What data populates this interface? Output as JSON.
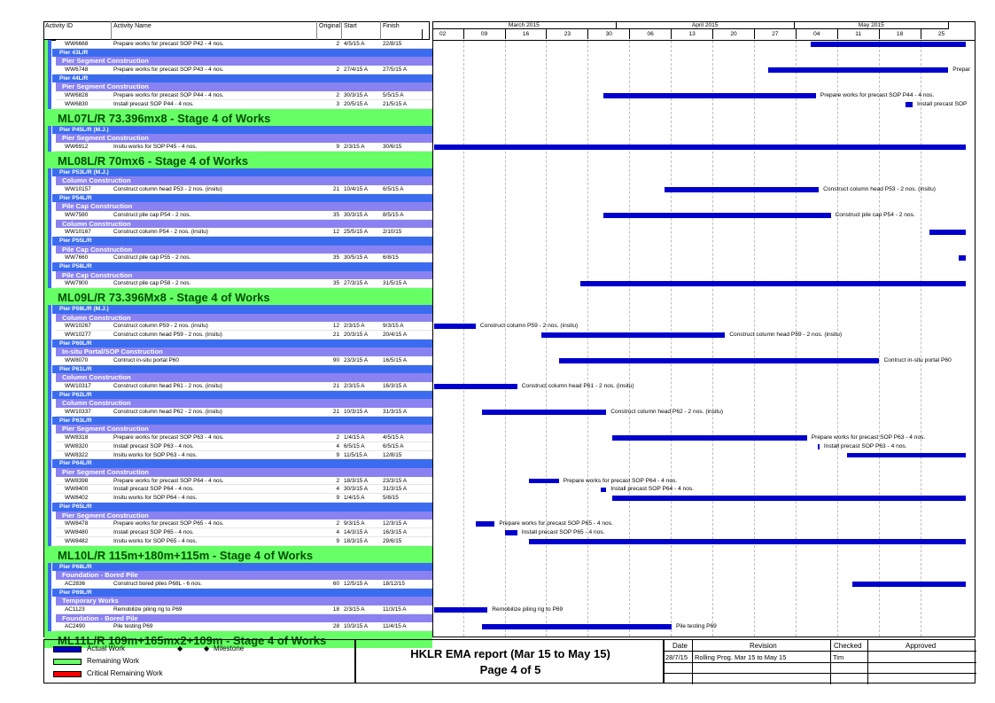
{
  "header": {
    "columns": {
      "activity_id": "Activity ID",
      "activity_name": "Activity Name",
      "original": "Original",
      "start": "Start",
      "finish": "Finish"
    },
    "months": [
      {
        "label": "March 2015",
        "start_day": 0,
        "end_day": 31
      },
      {
        "label": "April 2015",
        "start_day": 31,
        "end_day": 61
      },
      {
        "label": "May 2015",
        "start_day": 61,
        "end_day": 87
      }
    ],
    "weeks": [
      {
        "label": "02",
        "day": 1
      },
      {
        "label": "09",
        "day": 8
      },
      {
        "label": "16",
        "day": 15
      },
      {
        "label": "23",
        "day": 22
      },
      {
        "label": "30",
        "day": 29
      },
      {
        "label": "06",
        "day": 36
      },
      {
        "label": "13",
        "day": 43
      },
      {
        "label": "20",
        "day": 50
      },
      {
        "label": "27",
        "day": 57
      },
      {
        "label": "04",
        "day": 64
      },
      {
        "label": "11",
        "day": 71
      },
      {
        "label": "18",
        "day": 78
      },
      {
        "label": "25",
        "day": 85
      }
    ]
  },
  "rows": [
    {
      "type": "activity",
      "id": "WW6668",
      "name": "Prepare works for precast SOP P42 - 4 nos.",
      "dur": "2",
      "start": "4/5/15 A",
      "finish": "22/8/15",
      "bar": [
        63.4,
        89.5
      ],
      "label": ""
    },
    {
      "type": "l1",
      "text": "Pier 43L/R"
    },
    {
      "type": "l2",
      "text": "Pier Segment Construction"
    },
    {
      "type": "activity",
      "id": "WW6748",
      "name": "Prepare works for precast SOP P43 - 4 nos.",
      "dur": "2",
      "start": "27/4/15 A",
      "finish": "27/5/15 A",
      "bar": [
        56.3,
        86.6
      ],
      "label": "Prepar"
    },
    {
      "type": "l1",
      "text": "Pier 44L/R"
    },
    {
      "type": "l2",
      "text": "Pier Segment Construction"
    },
    {
      "type": "activity",
      "id": "WW6828",
      "name": "Prepare works for precast SOP P44 - 4 nos.",
      "dur": "2",
      "start": "30/3/15 A",
      "finish": "5/5/15 A",
      "bar": [
        28.5,
        64.3
      ],
      "label": "Prepare works for precast SOP P44 - 4 nos."
    },
    {
      "type": "activity",
      "id": "WW6830",
      "name": "Install precast SOP P44 - 4 nos.",
      "dur": "3",
      "start": "20/5/15 A",
      "finish": "21/5/15 A",
      "bar": [
        79.4,
        80.6
      ],
      "label": "Install precast SOP"
    },
    {
      "type": "wbs",
      "text": "ML07L/R 73.396mx8 - Stage 4 of Works"
    },
    {
      "type": "l1",
      "text": "Pier P45L/R (M.J.)"
    },
    {
      "type": "l2",
      "text": "Pier Segment Construction"
    },
    {
      "type": "activity",
      "id": "WW6912",
      "name": "Insitu works for SOP P45 - 4 nos.",
      "dur": "9",
      "start": "2/3/15 A",
      "finish": "30/6/15",
      "bar": [
        0,
        89.5
      ],
      "label": ""
    },
    {
      "type": "wbs",
      "text": "ML08L/R 70mx6 - Stage 4 of Works"
    },
    {
      "type": "l1",
      "text": "Pier P53L/R (M.J.)"
    },
    {
      "type": "l2",
      "text": "Column Construction"
    },
    {
      "type": "activity",
      "id": "WW10157",
      "name": "Construct column head P53 - 2 nos. (insitu)",
      "dur": "21",
      "start": "10/4/15 A",
      "finish": "6/5/15 A",
      "bar": [
        38.8,
        64.8
      ],
      "label": "Construct column head P53 - 2 nos. (insitu)"
    },
    {
      "type": "l1",
      "text": "Pier P54L/R"
    },
    {
      "type": "l2",
      "text": "Pile Cap Construction"
    },
    {
      "type": "activity",
      "id": "WW7580",
      "name": "Construct pile cap P54 - 2 nos.",
      "dur": "35",
      "start": "30/3/15 A",
      "finish": "8/5/15 A",
      "bar": [
        28.5,
        66.8
      ],
      "label": "Construct pile cap P54 - 2 nos."
    },
    {
      "type": "l2",
      "text": "Column Construction"
    },
    {
      "type": "activity",
      "id": "WW10167",
      "name": "Construct column P54 - 2 nos. (insitu)",
      "dur": "12",
      "start": "25/5/15 A",
      "finish": "2/10/15",
      "bar": [
        83.5,
        89.5
      ],
      "label": ""
    },
    {
      "type": "l1",
      "text": "Pier P55L/R"
    },
    {
      "type": "l2",
      "text": "Pile Cap Construction"
    },
    {
      "type": "activity",
      "id": "WW7660",
      "name": "Construct pile cap P55 - 2 nos.",
      "dur": "35",
      "start": "30/5/15 A",
      "finish": "6/8/15",
      "bar": [
        88.4,
        89.5
      ],
      "label": ""
    },
    {
      "type": "l1",
      "text": "Pier P58L/R"
    },
    {
      "type": "l2",
      "text": "Pile Cap Construction"
    },
    {
      "type": "activity",
      "id": "WW7900",
      "name": "Construct pile cap P58 - 2 nos.",
      "dur": "35",
      "start": "27/3/15 A",
      "finish": "31/5/15 A",
      "bar": [
        24.7,
        89.5
      ],
      "label": ""
    },
    {
      "type": "wbs",
      "text": "ML09L/R 73.396Mx8 - Stage 4 of Works"
    },
    {
      "type": "l1",
      "text": "Pier P59L/R (M.J.)"
    },
    {
      "type": "l2",
      "text": "Column Construction"
    },
    {
      "type": "activity",
      "id": "WW10267",
      "name": "Construct column P59 - 2 nos. (insitu)",
      "dur": "12",
      "start": "2/3/15 A",
      "finish": "9/3/15 A",
      "bar": [
        0,
        7
      ],
      "label": "Construct column P59 - 2 nos. (insitu)"
    },
    {
      "type": "activity",
      "id": "WW10277",
      "name": "Construct column head P59 - 2 nos. (insitu)",
      "dur": "21",
      "start": "20/3/15 A",
      "finish": "20/4/15 A",
      "bar": [
        18,
        49
      ],
      "label": "Construct column head P59 - 2 nos. (insitu)"
    },
    {
      "type": "l1",
      "text": "Pier P60L/R"
    },
    {
      "type": "l2",
      "text": "In-situ Portal/SOP Construction"
    },
    {
      "type": "activity",
      "id": "WW8070",
      "name": "Contruct in-situ portal P60",
      "dur": "90",
      "start": "23/3/15 A",
      "finish": "16/5/15 A",
      "bar": [
        21,
        75
      ],
      "label": "Contruct in-situ portal P60"
    },
    {
      "type": "l1",
      "text": "Pier P61L/R"
    },
    {
      "type": "l2",
      "text": "Column Construction"
    },
    {
      "type": "activity",
      "id": "WW10317",
      "name": "Construct column head P61 - 2 nos. (insitu)",
      "dur": "21",
      "start": "2/3/15 A",
      "finish": "16/3/15 A",
      "bar": [
        0,
        14
      ],
      "label": "Construct column head P61 - 2 nos. (insitu)"
    },
    {
      "type": "l1",
      "text": "Pier P62L/R"
    },
    {
      "type": "l2",
      "text": "Column Construction"
    },
    {
      "type": "activity",
      "id": "WW10337",
      "name": "Construct column head P62 - 2 nos. (insitu)",
      "dur": "21",
      "start": "10/3/15 A",
      "finish": "31/3/15 A",
      "bar": [
        8,
        29
      ],
      "label": "Construct column head P62 - 2 nos. (insitu)"
    },
    {
      "type": "l1",
      "text": "Pier P63L/R"
    },
    {
      "type": "l2",
      "text": "Pier Segment Construction"
    },
    {
      "type": "activity",
      "id": "WW8318",
      "name": "Prepare works for precast SOP P63 - 4 nos.",
      "dur": "2",
      "start": "1/4/15 A",
      "finish": "4/5/15 A",
      "bar": [
        30,
        62.8
      ],
      "label": "Prepare works for precast SOP P63 - 4 nos."
    },
    {
      "type": "activity",
      "id": "WW8320",
      "name": "Install precast SOP P63 - 4 nos.",
      "dur": "4",
      "start": "6/5/15 A",
      "finish": "6/5/15 A",
      "bar": [
        64.6,
        64.9
      ],
      "label": "Install precast SOP P63 - 4 nos."
    },
    {
      "type": "activity",
      "id": "WW8322",
      "name": "Insitu works for SOP P63 - 4 nos.",
      "dur": "9",
      "start": "11/5/15 A",
      "finish": "12/8/15",
      "bar": [
        69.6,
        89.5
      ],
      "label": ""
    },
    {
      "type": "l1",
      "text": "Pier P64L/R"
    },
    {
      "type": "l2",
      "text": "Pier Segment Construction"
    },
    {
      "type": "activity",
      "id": "WW8398",
      "name": "Prepare works for precast SOP P64 - 4 nos.",
      "dur": "2",
      "start": "18/3/15 A",
      "finish": "23/3/15 A",
      "bar": [
        16,
        21
      ],
      "label": "Prepare works for precast SOP P64 - 4 nos."
    },
    {
      "type": "activity",
      "id": "WW8400",
      "name": "Install precast SOP P64 - 4 nos.",
      "dur": "4",
      "start": "30/3/15 A",
      "finish": "31/3/15 A",
      "bar": [
        28,
        29
      ],
      "label": "Install precast SOP P64 - 4 nos."
    },
    {
      "type": "activity",
      "id": "WW8402",
      "name": "Insitu works for SOP P64 - 4 nos.",
      "dur": "9",
      "start": "1/4/15 A",
      "finish": "5/8/15",
      "bar": [
        30,
        89.5
      ],
      "label": ""
    },
    {
      "type": "l1",
      "text": "Pier P65L/R"
    },
    {
      "type": "l2",
      "text": "Pier Segment Construction"
    },
    {
      "type": "activity",
      "id": "WW8478",
      "name": "Prepare works for precast SOP P65 - 4 nos.",
      "dur": "2",
      "start": "9/3/15 A",
      "finish": "12/3/15 A",
      "bar": [
        7,
        10.2
      ],
      "label": "Prepare works for precast SOP P65 - 4 nos."
    },
    {
      "type": "activity",
      "id": "WW8480",
      "name": "Install precast SOP P65 - 4 nos.",
      "dur": "4",
      "start": "14/3/15 A",
      "finish": "16/3/15 A",
      "bar": [
        12,
        14
      ],
      "label": "Install precast SOP P65 - 4 nos."
    },
    {
      "type": "activity",
      "id": "WW8482",
      "name": "Insitu works for SOP P65 - 4 nos.",
      "dur": "9",
      "start": "18/3/15 A",
      "finish": "29/6/15",
      "bar": [
        16,
        89.5
      ],
      "label": ""
    },
    {
      "type": "wbs",
      "text": "ML10L/R 115m+180m+115m - Stage 4 of Works"
    },
    {
      "type": "l1",
      "text": "Pier P68L/R"
    },
    {
      "type": "l2",
      "text": "Foundation - Bored Pile"
    },
    {
      "type": "activity",
      "id": "AC2836",
      "name": "Construct bored piles P68L - 6 nos.",
      "dur": "60",
      "start": "12/5/15 A",
      "finish": "18/12/15",
      "bar": [
        70.4,
        89.5
      ],
      "label": ""
    },
    {
      "type": "l1",
      "text": "Pier P69L/R"
    },
    {
      "type": "l2",
      "text": "Temporary Works"
    },
    {
      "type": "activity",
      "id": "AC1123",
      "name": "Remobilize piling rig to P69",
      "dur": "18",
      "start": "2/3/15 A",
      "finish": "11/3/15 A",
      "bar": [
        0,
        9
      ],
      "label": "Remobilize piling rig to P69"
    },
    {
      "type": "l2",
      "text": "Foundation - Bored Pile"
    },
    {
      "type": "activity",
      "id": "AC2490",
      "name": "Pile testing P69",
      "dur": "28",
      "start": "10/3/15 A",
      "finish": "11/4/15 A",
      "bar": [
        8,
        40
      ],
      "label": "Pile testing P69"
    },
    {
      "type": "wbs",
      "text": "ML11L/R 109m+165mx2+109m - Stage 4 of Works"
    }
  ],
  "legend": {
    "actual_work": "Actual Work",
    "remaining_work": "Remaining Work",
    "critical_remaining_work": "Critical Remaining Work",
    "milestone": "Milestone"
  },
  "title_block": {
    "title": "HKLR EMA report (Mar 15 to May 15)",
    "page": "Page 4 of 5"
  },
  "revision_table": {
    "headers": {
      "date": "Date",
      "revision": "Revision",
      "checked": "Checked",
      "approved": "Approved"
    },
    "rows": [
      {
        "date": "28/7/15",
        "revision": "Rolling Prog. Mar 15 to May 15",
        "checked": "Tim",
        "approved": ""
      }
    ]
  },
  "colors": {
    "actual_bar": "#0000cc",
    "wbs_band": "#66ff66",
    "level1_band": "#3b6cf0",
    "level2_band": "#8a82f0",
    "remaining": "#66ff66",
    "critical": "#ff0000"
  }
}
